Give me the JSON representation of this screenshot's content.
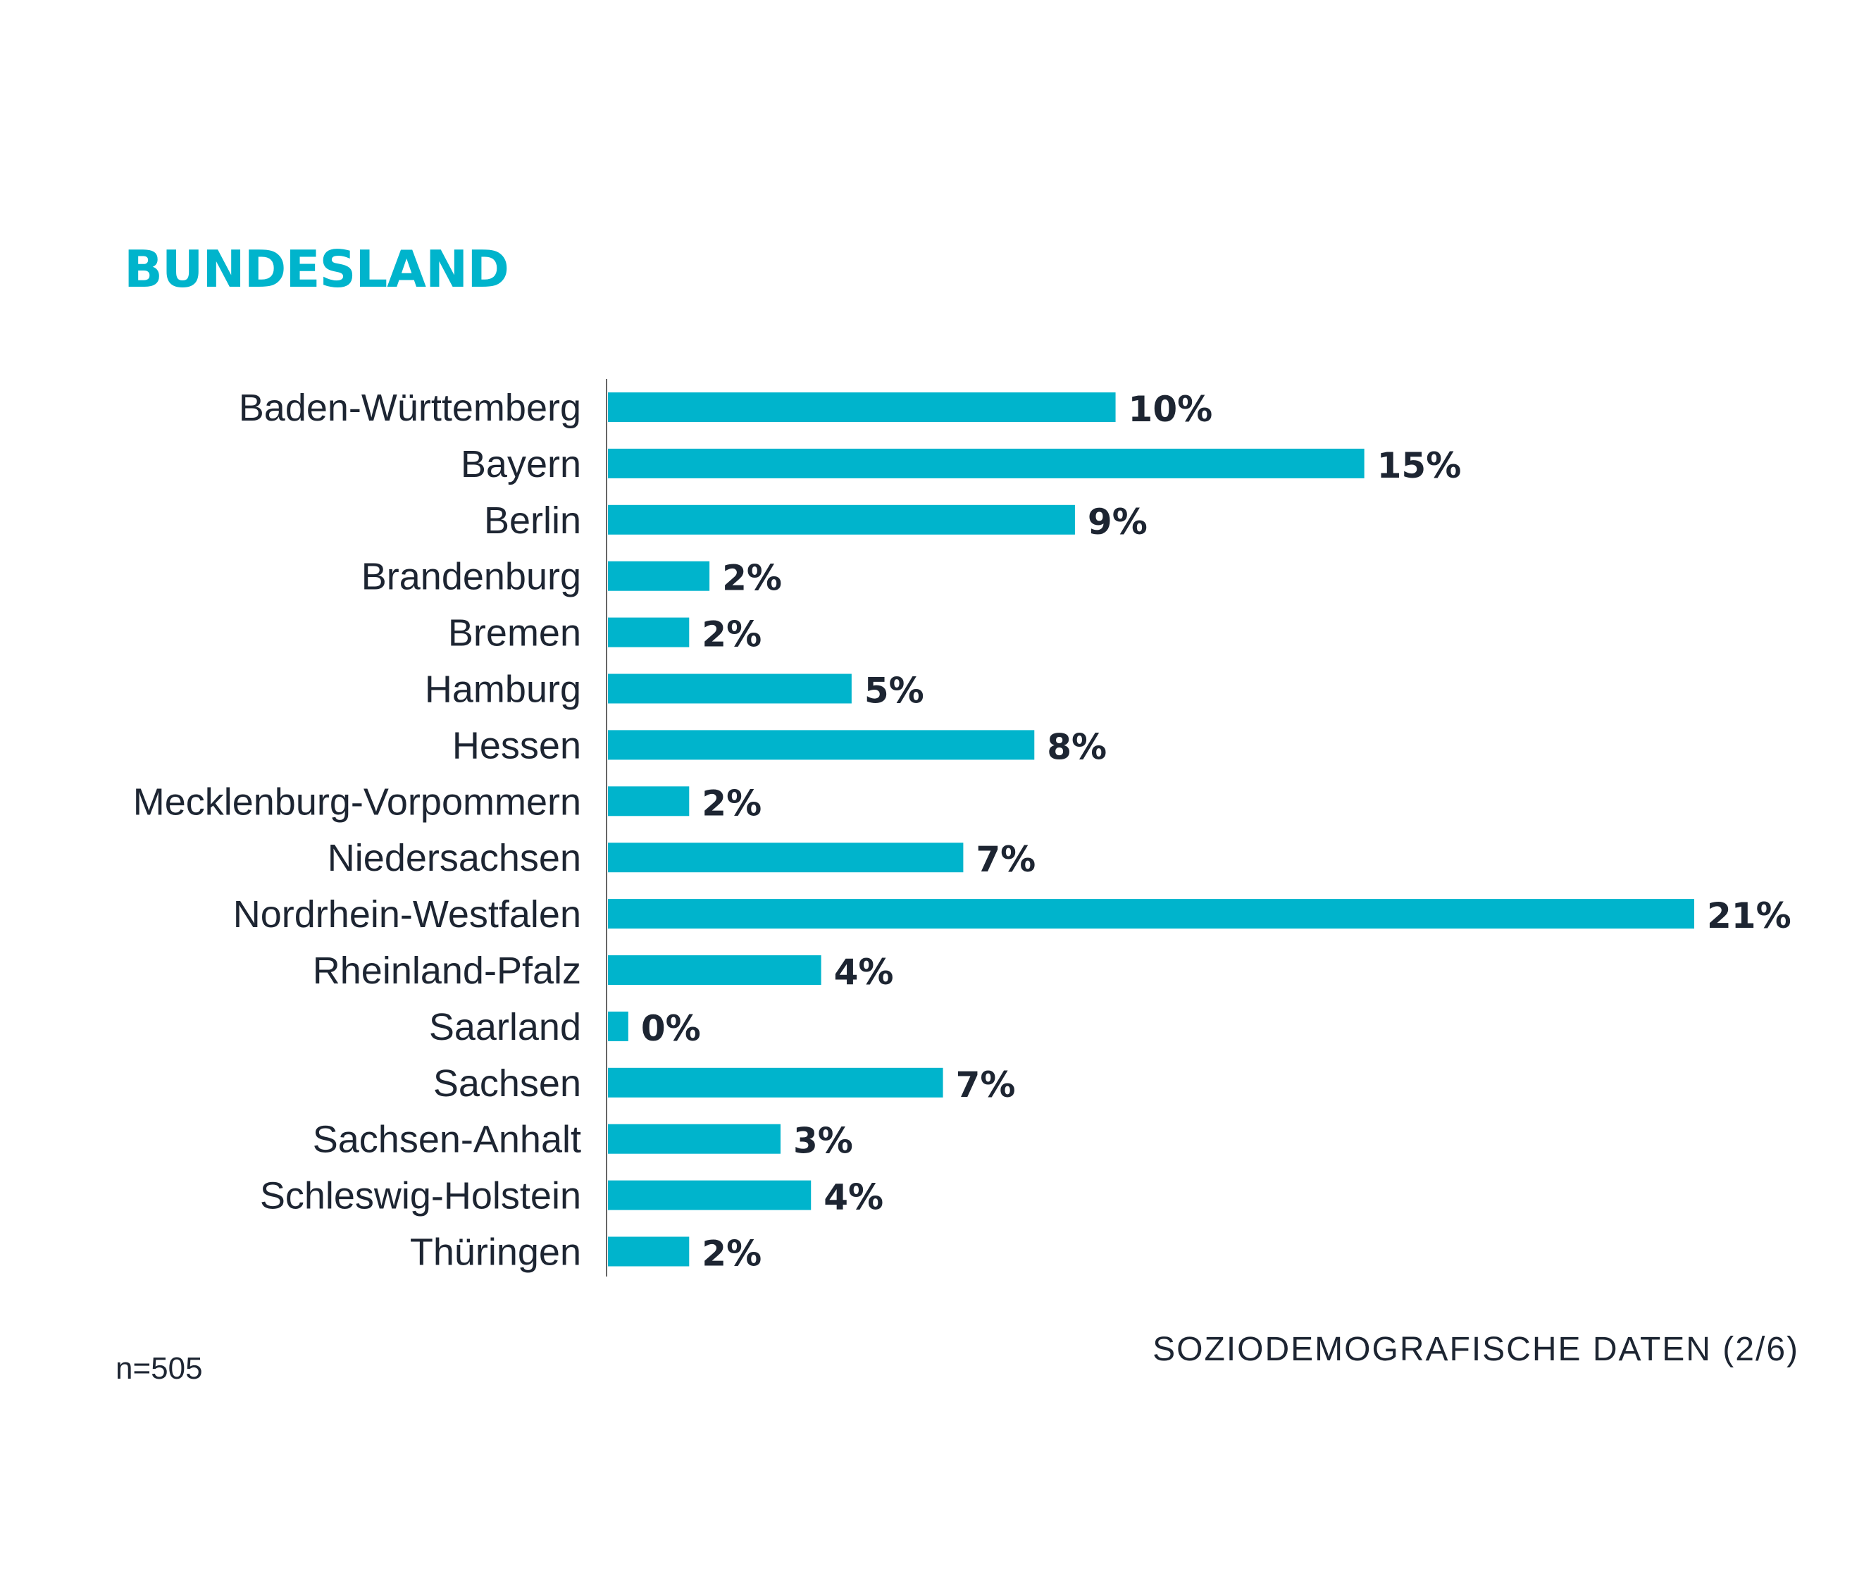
{
  "colors": {
    "accent": "#00b4cc",
    "text": "#1d2532",
    "axis": "#666666",
    "background": "#ffffff"
  },
  "sample_size": "n=505",
  "footer": "SOZIODEMOGRAFISCHE DATEN (2/6)",
  "chart_data": {
    "type": "bar",
    "orientation": "horizontal",
    "title": "BUNDESLAND",
    "categories": [
      "Baden-Württemberg",
      "Bayern",
      "Berlin",
      "Brandenburg",
      "Bremen",
      "Hamburg",
      "Hessen",
      "Mecklenburg-Vorpommern",
      "Niedersachsen",
      "Nordrhein-Westfalen",
      "Rheinland-Pfalz",
      "Saarland",
      "Sachsen",
      "Sachsen-Anhalt",
      "Schleswig-Holstein",
      "Thüringen"
    ],
    "values": [
      10,
      15,
      9,
      2,
      2,
      5,
      8,
      2,
      7,
      21,
      4,
      0,
      7,
      3,
      4,
      2
    ],
    "labels": [
      "10%",
      "15%",
      "9%",
      "2%",
      "2%",
      "5%",
      "8%",
      "2%",
      "7%",
      "21%",
      "4%",
      "0%",
      "7%",
      "3%",
      "4%",
      "2%"
    ],
    "bar_values_precise": [
      10.0,
      14.9,
      9.2,
      2.0,
      1.6,
      4.8,
      8.4,
      1.6,
      7.0,
      21.4,
      4.2,
      0.4,
      6.6,
      3.4,
      4.0,
      1.6
    ],
    "unit": "%",
    "xlim": [
      0,
      21.4
    ],
    "grid": false,
    "legend": "none"
  }
}
